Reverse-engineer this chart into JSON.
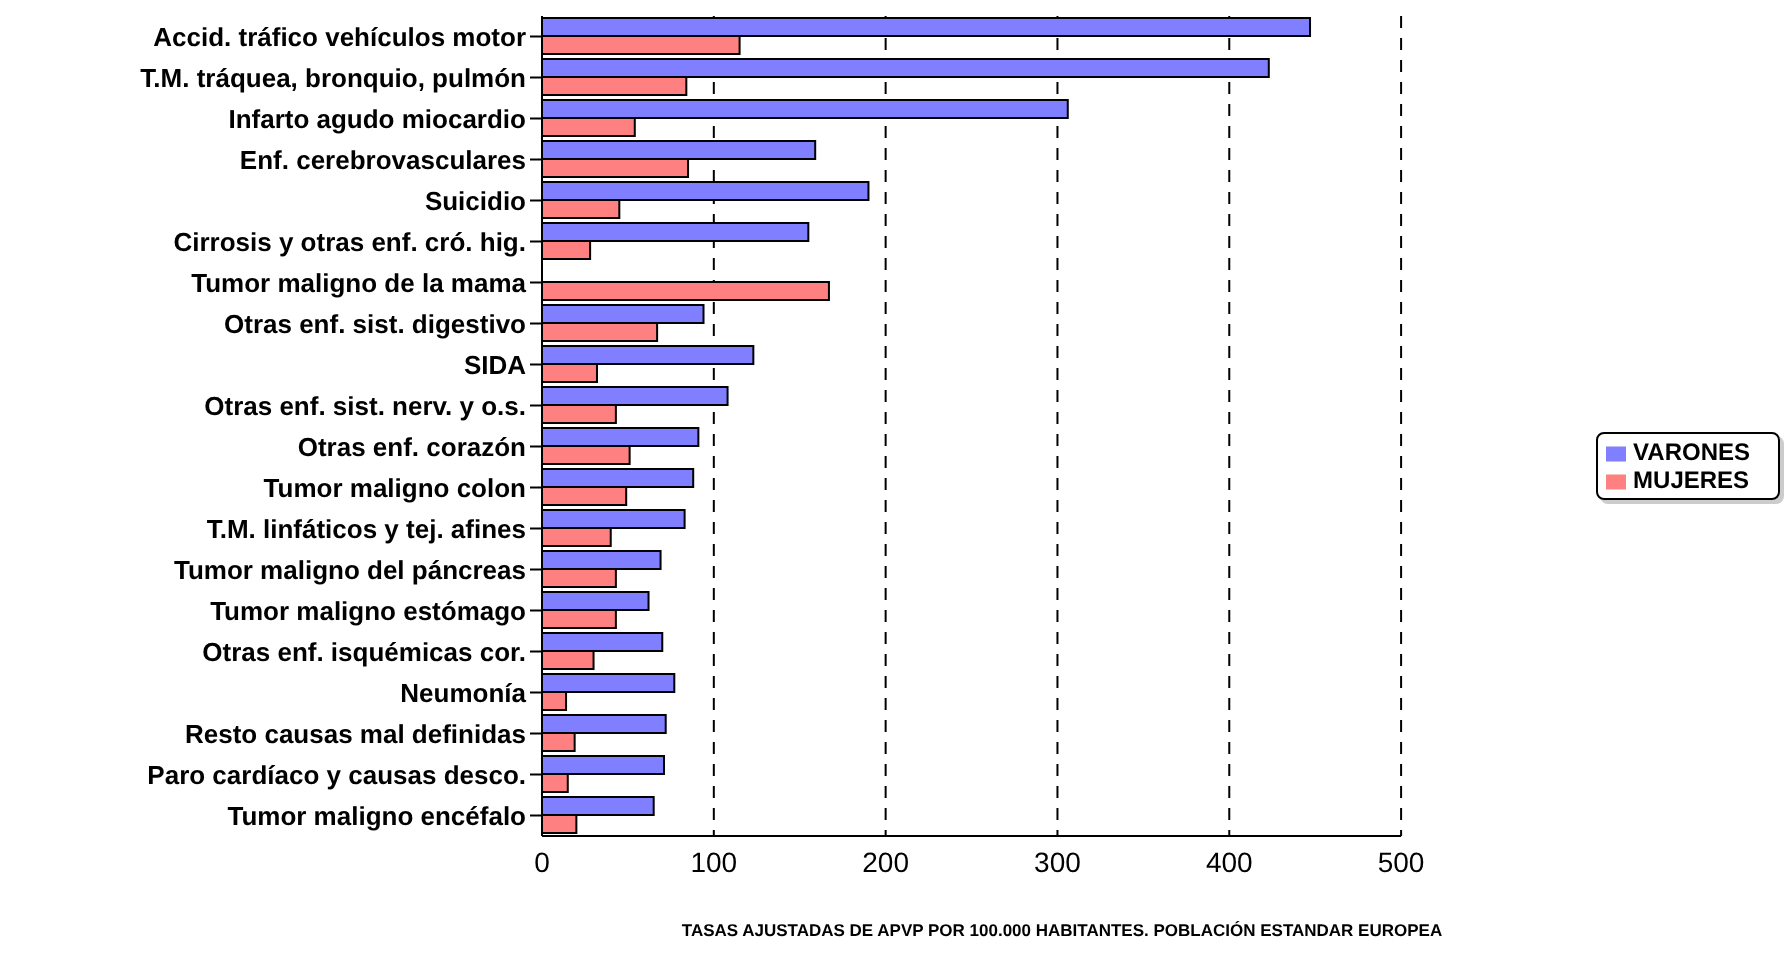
{
  "chart_data": {
    "type": "bar",
    "orientation": "horizontal",
    "xlabel": "TASAS AJUSTADAS  DE APVP POR 100.000 HABITANTES. POBLACIÓN ESTANDAR EUROPEA",
    "categories": [
      "Accid. tráfico vehículos motor",
      "T.M. tráquea, bronquio,  pulmón",
      "Infarto agudo miocardio",
      "Enf. cerebrovasculares",
      "Suicidio ",
      "Cirrosis y otras enf. cró. hig.",
      "Tumor maligno de la mama",
      "Otras enf. sist. digestivo",
      "SIDA",
      "Otras enf. sist. nerv. y o.s.",
      "Otras enf. corazón",
      "Tumor maligno colon",
      "T.M. linfáticos y tej. afines",
      "Tumor maligno del páncreas",
      "Tumor maligno estómago",
      "Otras enf. isquémicas cor.",
      "Neumonía",
      "Resto causas mal definidas",
      "Paro cardíaco y causas desco.",
      "Tumor maligno encéfalo"
    ],
    "series": [
      {
        "name": "VARONES",
        "color": "#7f7fff",
        "values": [
          447,
          423,
          306,
          159,
          190,
          155,
          null,
          94,
          123,
          108,
          91,
          88,
          83,
          69,
          62,
          70,
          77,
          72,
          71,
          65
        ]
      },
      {
        "name": "MUJERES",
        "color": "#ff8080",
        "values": [
          115,
          84,
          54,
          85,
          45,
          28,
          167,
          67,
          32,
          43,
          51,
          49,
          40,
          43,
          43,
          30,
          14,
          19,
          15,
          20
        ]
      }
    ],
    "xlim": [
      0,
      500
    ],
    "xticks": [
      0,
      100,
      200,
      300,
      400,
      500
    ],
    "grid": "x",
    "legend": "right"
  }
}
